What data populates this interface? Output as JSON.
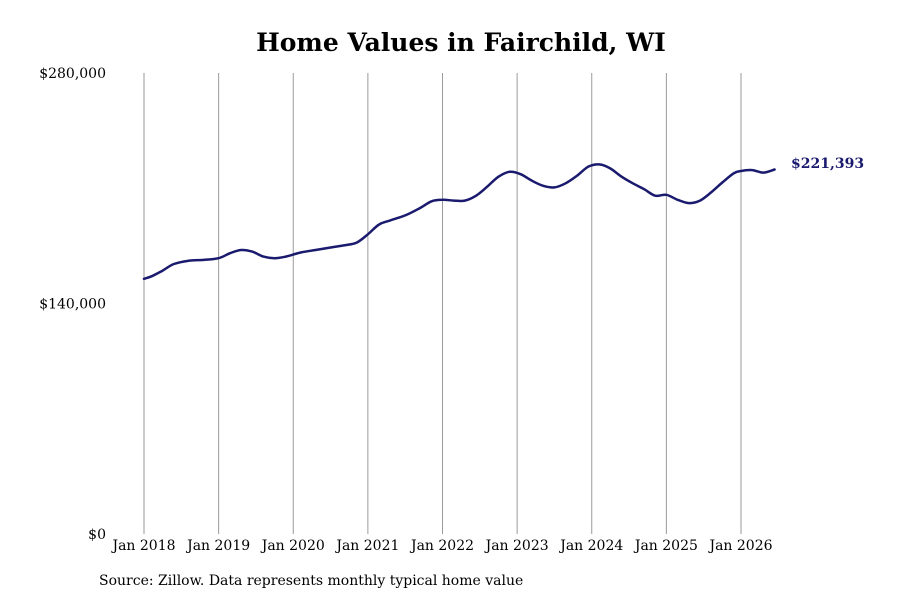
{
  "chart_data": {
    "type": "line",
    "title": "Home Values in Fairchild, WI",
    "source": "Source: Zillow. Data represents monthly typical home value",
    "xlabel": "",
    "ylabel": "",
    "ylim": [
      0,
      280000
    ],
    "yticks": [
      {
        "value": 0,
        "label": "$0"
      },
      {
        "value": 140000,
        "label": "$140,000"
      },
      {
        "value": 280000,
        "label": "$280,000"
      }
    ],
    "xticks": [
      {
        "value": 2018,
        "label": "Jan 2018"
      },
      {
        "value": 2019,
        "label": "Jan 2019"
      },
      {
        "value": 2020,
        "label": "Jan 2020"
      },
      {
        "value": 2021,
        "label": "Jan 2021"
      },
      {
        "value": 2022,
        "label": "Jan 2022"
      },
      {
        "value": 2023,
        "label": "Jan 2023"
      },
      {
        "value": 2024,
        "label": "Jan 2024"
      },
      {
        "value": 2025,
        "label": "Jan 2025"
      },
      {
        "value": 2026,
        "label": "Jan 2026"
      }
    ],
    "xlim": [
      2017.9,
      2026.95
    ],
    "grid": {
      "vertical": true,
      "horizontal": false
    },
    "series": [
      {
        "name": "",
        "color": "#1a1a6e",
        "last_label": "$221,393",
        "x": [
          2018.0,
          2018.1,
          2018.25,
          2018.4,
          2018.6,
          2018.8,
          2019.0,
          2019.15,
          2019.3,
          2019.45,
          2019.6,
          2019.75,
          2019.9,
          2020.1,
          2020.3,
          2020.5,
          2020.7,
          2020.85,
          2021.0,
          2021.15,
          2021.3,
          2021.5,
          2021.7,
          2021.85,
          2022.0,
          2022.15,
          2022.3,
          2022.45,
          2022.6,
          2022.75,
          2022.9,
          2023.05,
          2023.2,
          2023.35,
          2023.5,
          2023.65,
          2023.8,
          2023.95,
          2024.1,
          2024.25,
          2024.4,
          2024.55,
          2024.7,
          2024.85,
          2025.0,
          2025.15,
          2025.3,
          2025.45,
          2025.6,
          2025.75,
          2025.9,
          2026.0,
          2026.15,
          2026.3,
          2026.45
        ],
        "values": [
          155000,
          156500,
          160000,
          164000,
          166000,
          166500,
          167500,
          170500,
          172500,
          171500,
          168500,
          167500,
          168500,
          171000,
          172500,
          174000,
          175500,
          177000,
          182000,
          188000,
          190500,
          193500,
          198000,
          202000,
          203000,
          202500,
          202500,
          205500,
          211000,
          217000,
          220000,
          218500,
          214500,
          211500,
          210500,
          213000,
          217500,
          223000,
          224500,
          222000,
          217000,
          213000,
          209500,
          205500,
          206000,
          203000,
          201000,
          202500,
          207500,
          213500,
          219000,
          220500,
          221000,
          219500,
          221393
        ]
      }
    ]
  }
}
